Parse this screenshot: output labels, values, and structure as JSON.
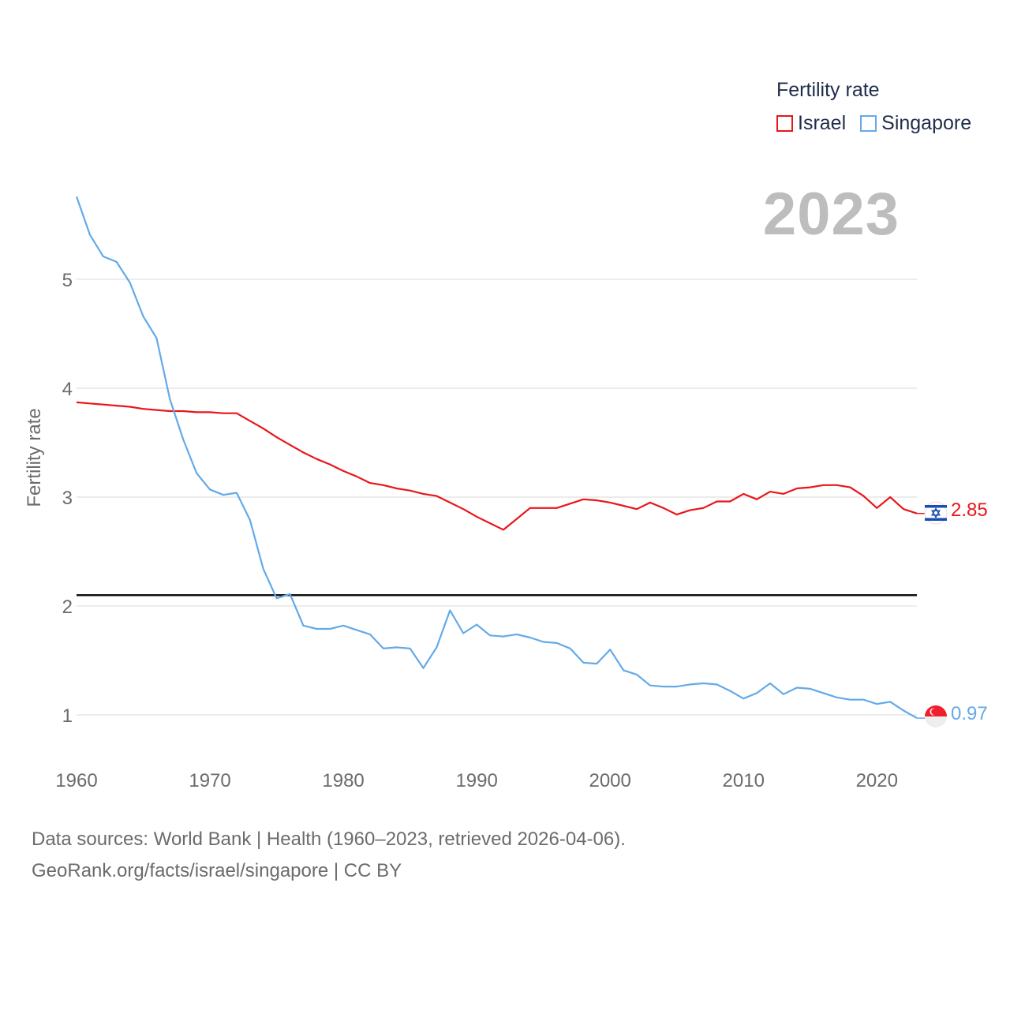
{
  "colors": {
    "israel": "#e8161b",
    "singapore": "#64a9e8",
    "grid": "#e6e6e6",
    "axis_text": "#6b6b6b",
    "reference": "#111111"
  },
  "legend": {
    "title": "Fertility rate",
    "items": [
      {
        "label": "Israel",
        "color": "#e8161b"
      },
      {
        "label": "Singapore",
        "color": "#64a9e8"
      }
    ]
  },
  "year_display": "2023",
  "source": {
    "line1": "Data sources: World Bank | Health (1960–2023, retrieved 2026-04-06).",
    "line2": "GeoRank.org/facts/israel/singapore | CC BY"
  },
  "chart_data": {
    "type": "line",
    "title": "",
    "xlabel": "",
    "ylabel": "Fertility rate",
    "xlim": [
      1960,
      2023
    ],
    "ylim": [
      0.6,
      5.8
    ],
    "x_ticks": [
      1960,
      1970,
      1980,
      1990,
      2000,
      2010,
      2020
    ],
    "y_ticks": [
      1,
      2,
      3,
      4,
      5
    ],
    "reference_line": 2.1,
    "x": [
      1960,
      1961,
      1962,
      1963,
      1964,
      1965,
      1966,
      1967,
      1968,
      1969,
      1970,
      1971,
      1972,
      1973,
      1974,
      1975,
      1976,
      1977,
      1978,
      1979,
      1980,
      1981,
      1982,
      1983,
      1984,
      1985,
      1986,
      1987,
      1988,
      1989,
      1990,
      1991,
      1992,
      1993,
      1994,
      1995,
      1996,
      1997,
      1998,
      1999,
      2000,
      2001,
      2002,
      2003,
      2004,
      2005,
      2006,
      2007,
      2008,
      2009,
      2010,
      2011,
      2012,
      2013,
      2014,
      2015,
      2016,
      2017,
      2018,
      2019,
      2020,
      2021,
      2022,
      2023
    ],
    "series": [
      {
        "name": "Israel",
        "color": "#e8161b",
        "end_label": "2.85",
        "values": [
          3.87,
          3.86,
          3.85,
          3.84,
          3.83,
          3.81,
          3.8,
          3.79,
          3.79,
          3.78,
          3.78,
          3.77,
          3.77,
          3.7,
          3.63,
          3.55,
          3.48,
          3.41,
          3.35,
          3.3,
          3.24,
          3.19,
          3.13,
          3.11,
          3.08,
          3.06,
          3.03,
          3.01,
          2.95,
          2.89,
          2.82,
          2.76,
          2.7,
          2.8,
          2.9,
          2.9,
          2.9,
          2.94,
          2.98,
          2.97,
          2.95,
          2.92,
          2.89,
          2.95,
          2.9,
          2.84,
          2.88,
          2.9,
          2.96,
          2.96,
          3.03,
          2.98,
          3.05,
          3.03,
          3.08,
          3.09,
          3.11,
          3.11,
          3.09,
          3.01,
          2.9,
          3.0,
          2.89,
          2.85
        ]
      },
      {
        "name": "Singapore",
        "color": "#64a9e8",
        "end_label": "0.97",
        "values": [
          5.76,
          5.41,
          5.21,
          5.16,
          4.97,
          4.66,
          4.46,
          3.9,
          3.53,
          3.22,
          3.07,
          3.02,
          3.04,
          2.79,
          2.34,
          2.07,
          2.11,
          1.82,
          1.79,
          1.79,
          1.82,
          1.78,
          1.74,
          1.61,
          1.62,
          1.61,
          1.43,
          1.62,
          1.96,
          1.75,
          1.83,
          1.73,
          1.72,
          1.74,
          1.71,
          1.67,
          1.66,
          1.61,
          1.48,
          1.47,
          1.6,
          1.41,
          1.37,
          1.27,
          1.26,
          1.26,
          1.28,
          1.29,
          1.28,
          1.22,
          1.15,
          1.2,
          1.29,
          1.19,
          1.25,
          1.24,
          1.2,
          1.16,
          1.14,
          1.14,
          1.1,
          1.12,
          1.04,
          0.97
        ]
      }
    ]
  }
}
